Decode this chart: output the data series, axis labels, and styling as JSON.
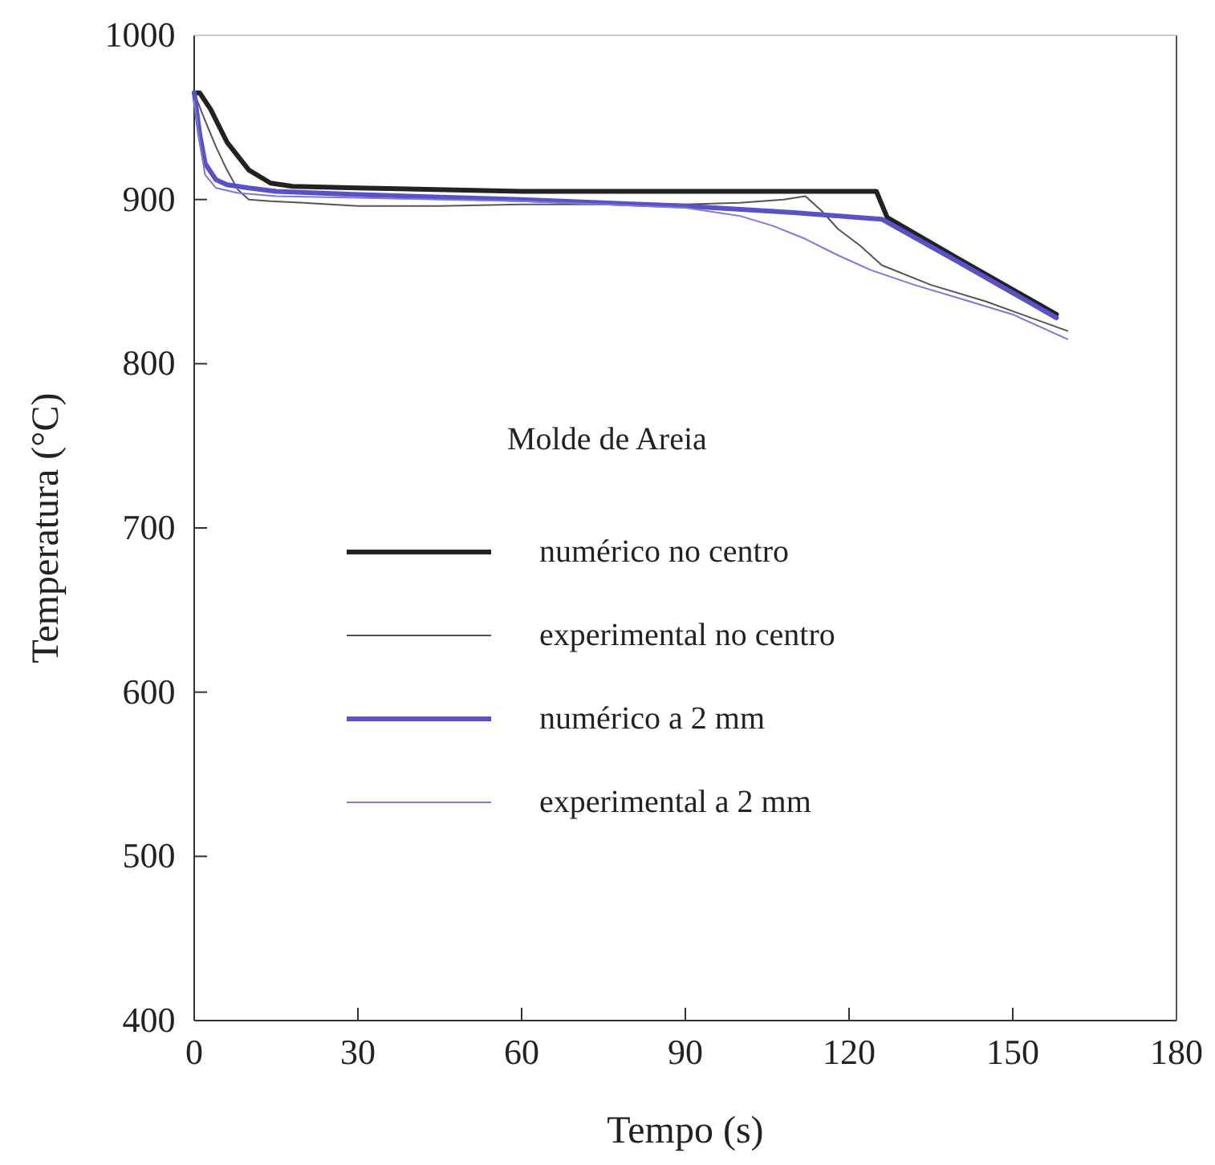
{
  "chart_data": {
    "type": "line",
    "xlabel": "Tempo (s)",
    "ylabel": "Temperatura  (°C)",
    "legend_title": "Molde de Areia",
    "legend": "center",
    "grid": false,
    "xlim": [
      0,
      180
    ],
    "ylim": [
      400,
      1000
    ],
    "xticks": [
      0,
      30,
      60,
      90,
      120,
      150,
      180
    ],
    "yticks": [
      400,
      500,
      600,
      700,
      800,
      900,
      1000
    ],
    "series": [
      {
        "name": "numérico no centro",
        "color": "#222222",
        "x": [
          0,
          1,
          3,
          6,
          10,
          14,
          18,
          30,
          60,
          90,
          110,
          125,
          127,
          140,
          158
        ],
        "values": [
          965,
          965,
          955,
          935,
          918,
          910,
          908,
          907,
          905,
          905,
          905,
          905,
          889,
          864,
          830
        ]
      },
      {
        "name": "experimental no centro",
        "color": "#555555",
        "x": [
          0,
          2,
          4,
          6,
          8,
          10,
          14,
          20,
          30,
          45,
          60,
          75,
          90,
          100,
          108,
          112,
          115,
          118,
          122,
          126,
          135,
          145,
          160
        ],
        "values": [
          965,
          948,
          932,
          918,
          906,
          900,
          899,
          898,
          896,
          896,
          897,
          897,
          897,
          898,
          900,
          902,
          893,
          882,
          872,
          860,
          848,
          838,
          820
        ]
      },
      {
        "name": "numérico a 2 mm",
        "color": "#5a50c8",
        "x": [
          0,
          1,
          2,
          4,
          6,
          10,
          15,
          30,
          60,
          90,
          110,
          126,
          140,
          158
        ],
        "values": [
          965,
          940,
          922,
          912,
          909,
          907,
          905,
          903,
          900,
          896,
          892,
          888,
          862,
          828
        ]
      },
      {
        "name": "experimental a 2 mm",
        "color": "#7a78d8",
        "x": [
          0,
          1,
          2,
          4,
          8,
          15,
          30,
          45,
          60,
          75,
          90,
          100,
          106,
          112,
          118,
          124,
          132,
          142,
          150,
          160
        ],
        "values": [
          960,
          935,
          915,
          907,
          904,
          902,
          901,
          900,
          899,
          897,
          895,
          890,
          884,
          876,
          866,
          857,
          848,
          838,
          830,
          815
        ]
      }
    ]
  }
}
